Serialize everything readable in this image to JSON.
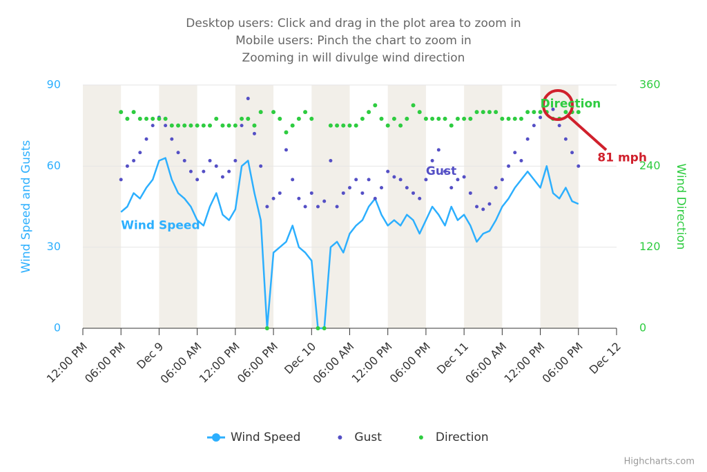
{
  "chart_data": {
    "type": "line",
    "title": [
      "Desktop users: Click and drag in the plot area to zoom in",
      "Mobile users: Pinch the chart to zoom in",
      "Zooming in will divulge wind direction"
    ],
    "y_label": "Wind Speed and Gusts",
    "y2_label": "Wind Direction",
    "credits": "Highcharts.com",
    "annotations": [
      {
        "text": "Wind Speed",
        "x": "Dec 8 18:00",
        "y": 38,
        "color": "#2caffe"
      },
      {
        "text": "Gust",
        "x": "Dec 10 18:00",
        "y": 58,
        "color": "#544fc5"
      },
      {
        "text": "Direction",
        "x": "Dec 11 12:00",
        "y": 83,
        "color": "#2ecc40"
      },
      {
        "text": "81 mph",
        "x": "Dec 11 21:00",
        "y": 63,
        "color": "#d0202c"
      }
    ],
    "x": [
      "Dec 8 18:00",
      "Dec 8 19:00",
      "Dec 8 20:00",
      "Dec 8 21:00",
      "Dec 8 22:00",
      "Dec 8 23:00",
      "Dec 9 00:00",
      "Dec 9 01:00",
      "Dec 9 02:00",
      "Dec 9 03:00",
      "Dec 9 04:00",
      "Dec 9 05:00",
      "Dec 9 06:00",
      "Dec 9 07:00",
      "Dec 9 08:00",
      "Dec 9 09:00",
      "Dec 9 10:00",
      "Dec 9 11:00",
      "Dec 9 12:00",
      "Dec 9 13:00",
      "Dec 9 14:00",
      "Dec 9 15:00",
      "Dec 9 16:00",
      "Dec 9 17:00",
      "Dec 9 18:00",
      "Dec 9 19:00",
      "Dec 9 20:00",
      "Dec 9 21:00",
      "Dec 9 22:00",
      "Dec 9 23:00",
      "Dec 10 00:00",
      "Dec 10 01:00",
      "Dec 10 02:00",
      "Dec 10 03:00",
      "Dec 10 04:00",
      "Dec 10 05:00",
      "Dec 10 06:00",
      "Dec 10 07:00",
      "Dec 10 08:00",
      "Dec 10 09:00",
      "Dec 10 10:00",
      "Dec 10 11:00",
      "Dec 10 12:00",
      "Dec 10 13:00",
      "Dec 10 14:00",
      "Dec 10 15:00",
      "Dec 10 16:00",
      "Dec 10 17:00",
      "Dec 10 18:00",
      "Dec 10 19:00",
      "Dec 10 20:00",
      "Dec 10 21:00",
      "Dec 10 22:00",
      "Dec 10 23:00",
      "Dec 11 00:00",
      "Dec 11 01:00",
      "Dec 11 02:00",
      "Dec 11 03:00",
      "Dec 11 04:00",
      "Dec 11 05:00",
      "Dec 11 06:00",
      "Dec 11 07:00",
      "Dec 11 08:00",
      "Dec 11 09:00",
      "Dec 11 10:00",
      "Dec 11 11:00",
      "Dec 11 12:00",
      "Dec 11 13:00",
      "Dec 11 14:00",
      "Dec 11 15:00",
      "Dec 11 16:00",
      "Dec 11 17:00",
      "Dec 11 18:00"
    ],
    "series": [
      {
        "name": "Wind Speed",
        "color": "#2caffe",
        "kind": "line",
        "values": [
          43,
          45,
          50,
          48,
          52,
          55,
          62,
          63,
          55,
          50,
          48,
          45,
          40,
          38,
          45,
          50,
          42,
          40,
          44,
          60,
          62,
          50,
          40,
          0,
          28,
          30,
          32,
          38,
          30,
          28,
          25,
          0,
          0,
          30,
          32,
          28,
          35,
          38,
          40,
          45,
          48,
          42,
          38,
          40,
          38,
          42,
          40,
          35,
          40,
          45,
          42,
          38,
          45,
          40,
          42,
          38,
          32,
          35,
          36,
          40,
          45,
          48,
          52,
          55,
          58,
          55,
          52,
          60,
          50,
          48,
          52,
          47,
          46
        ]
      },
      {
        "name": "Gust",
        "color": "#544fc5",
        "kind": "scatter",
        "values": [
          55,
          60,
          62,
          65,
          70,
          75,
          78,
          75,
          70,
          65,
          62,
          58,
          55,
          58,
          62,
          60,
          56,
          58,
          62,
          75,
          85,
          72,
          60,
          45,
          48,
          50,
          66,
          55,
          48,
          45,
          50,
          45,
          47,
          62,
          45,
          50,
          52,
          55,
          50,
          55,
          48,
          52,
          58,
          56,
          55,
          52,
          50,
          48,
          55,
          62,
          66,
          58,
          52,
          55,
          56,
          50,
          45,
          44,
          46,
          52,
          55,
          60,
          65,
          62,
          70,
          75,
          78,
          80,
          81,
          75,
          70,
          65,
          60
        ]
      },
      {
        "name": "Direction",
        "color": "#2ecc40",
        "kind": "scatter",
        "axis": "y2",
        "values": [
          320,
          310,
          320,
          310,
          310,
          310,
          310,
          310,
          300,
          300,
          300,
          300,
          300,
          300,
          300,
          310,
          300,
          300,
          300,
          310,
          310,
          300,
          320,
          0,
          320,
          310,
          290,
          300,
          310,
          320,
          310,
          0,
          0,
          300,
          300,
          300,
          300,
          300,
          310,
          320,
          330,
          310,
          300,
          310,
          300,
          310,
          330,
          320,
          310,
          310,
          310,
          310,
          300,
          310,
          310,
          310,
          320,
          320,
          320,
          320,
          310,
          310,
          310,
          310,
          320,
          320,
          320,
          320,
          310,
          310,
          320,
          320,
          320
        ]
      }
    ],
    "xlim": [
      "Dec 8 12:00",
      "Dec 12 00:00"
    ],
    "xticks": [
      {
        "value": "Dec 8 12:00",
        "label": "12:00 PM"
      },
      {
        "value": "Dec 8 18:00",
        "label": "06:00 PM"
      },
      {
        "value": "Dec 9 00:00",
        "label": "Dec 9"
      },
      {
        "value": "Dec 9 06:00",
        "label": "06:00 AM"
      },
      {
        "value": "Dec 9 12:00",
        "label": "12:00 PM"
      },
      {
        "value": "Dec 9 18:00",
        "label": "06:00 PM"
      },
      {
        "value": "Dec 10 00:00",
        "label": "Dec 10"
      },
      {
        "value": "Dec 10 06:00",
        "label": "06:00 AM"
      },
      {
        "value": "Dec 10 12:00",
        "label": "12:00 PM"
      },
      {
        "value": "Dec 10 18:00",
        "label": "06:00 PM"
      },
      {
        "value": "Dec 11 00:00",
        "label": "Dec 11"
      },
      {
        "value": "Dec 11 06:00",
        "label": "06:00 AM"
      },
      {
        "value": "Dec 11 12:00",
        "label": "12:00 PM"
      },
      {
        "value": "Dec 11 18:00",
        "label": "06:00 PM"
      },
      {
        "value": "Dec 12 00:00",
        "label": "Dec 12"
      }
    ],
    "ylim": [
      0,
      90
    ],
    "yticks": [
      0,
      30,
      60,
      90
    ],
    "y2lim": [
      0,
      360
    ],
    "y2ticks": [
      0,
      120,
      240,
      360
    ],
    "grid": true,
    "legend": "bottom"
  }
}
